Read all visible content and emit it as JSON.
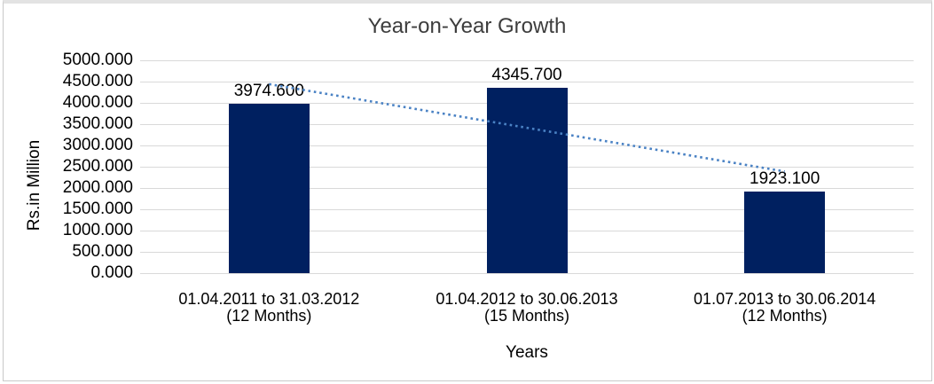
{
  "chart_data": {
    "type": "bar",
    "title": "Year-on-Year Growth",
    "xlabel": "Years",
    "ylabel": "Rs.in Million",
    "categories": [
      "01.04.2011 to 31.03.2012 (12 Months)",
      "01.04.2012 to 30.06.2013 (15 Months)",
      "01.07.2013 to 30.06.2014 (12 Months)"
    ],
    "categories_lines": [
      [
        "01.04.2011 to 31.03.2012",
        "(12 Months)"
      ],
      [
        "01.04.2012 to 30.06.2013",
        "(15 Months)"
      ],
      [
        "01.07.2013 to 30.06.2014",
        "(12 Months)"
      ]
    ],
    "values": [
      3974.6,
      4345.7,
      1923.1
    ],
    "data_labels": [
      "3974.600",
      "4345.700",
      "1923.100"
    ],
    "ylim": [
      0,
      5000
    ],
    "ytick_interval": 500,
    "yticks": [
      "5000.000",
      "4500.000",
      "4000.000",
      "3500.000",
      "3000.000",
      "2500.000",
      "2000.000",
      "1500.000",
      "1000.000",
      "500.000",
      "0.000"
    ],
    "grid": true,
    "legend": "none",
    "trendline": {
      "type": "linear",
      "line_style": "dotted"
    },
    "colors": {
      "bar": "#002060",
      "trendline": "#4a82c4",
      "gridline": "#d9d9d9",
      "text": "#000000",
      "title_text": "#3d3d3d"
    }
  }
}
